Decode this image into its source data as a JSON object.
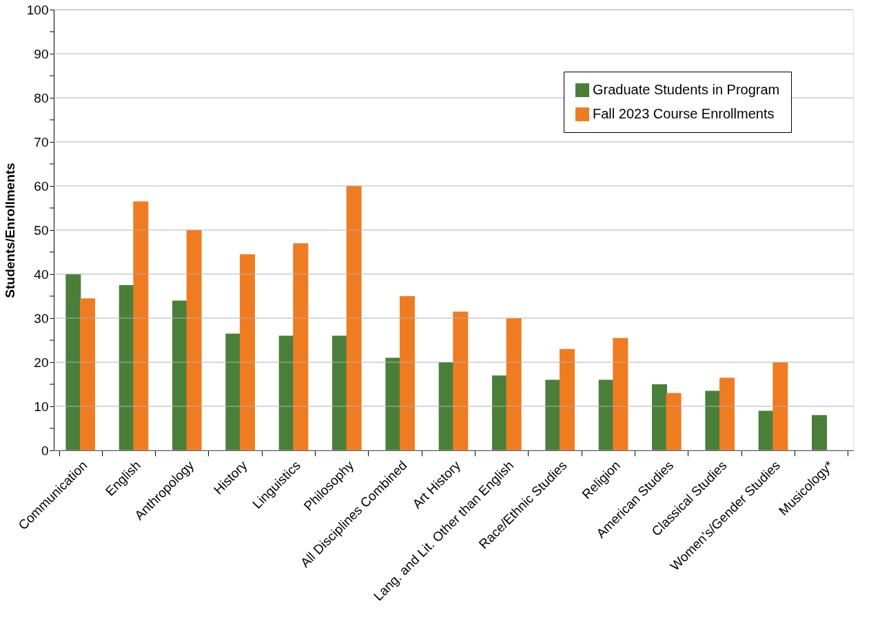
{
  "chart_data": {
    "type": "bar",
    "ylabel": "Students/Enrollments",
    "categories": [
      "Communication",
      "English",
      "Anthropology",
      "History",
      "Linguistics",
      "Philosophy",
      "All Disciplines Combined",
      "Art History",
      "Lang. and Lit. Other than English",
      "Race/Ethnic Studies",
      "Religion",
      "American Studies",
      "Classical Studies",
      "Women’s/Gender Studies",
      "Musicology*"
    ],
    "series": [
      {
        "name": "Graduate Students in Program",
        "color": "#4a7f3a",
        "values": [
          40,
          37.5,
          34,
          26.5,
          26,
          26,
          21,
          20,
          17,
          16,
          16,
          15,
          13.5,
          9,
          8
        ]
      },
      {
        "name": "Fall 2023 Course Enrollments",
        "color": "#f07c22",
        "values": [
          34.5,
          56.5,
          50,
          44.5,
          47,
          60,
          35,
          31.5,
          30,
          23,
          25.5,
          13,
          16.5,
          20,
          null
        ]
      }
    ],
    "ylim": [
      0,
      100
    ],
    "yticks": [
      0,
      {
        "value": 5,
        "label": null
      },
      10,
      {
        "value": 15,
        "label": null
      },
      20,
      {
        "value": 25,
        "label": null
      },
      30,
      {
        "value": 35,
        "label": null
      },
      40,
      {
        "value": 45,
        "label": null
      },
      50,
      {
        "value": 55,
        "label": null
      },
      60,
      {
        "value": 65,
        "label": null
      },
      70,
      {
        "value": 75,
        "label": null
      },
      80,
      {
        "value": 85,
        "label": null
      },
      90,
      {
        "value": 95,
        "label": null
      },
      100
    ],
    "grid": "y",
    "legend": "top right"
  }
}
